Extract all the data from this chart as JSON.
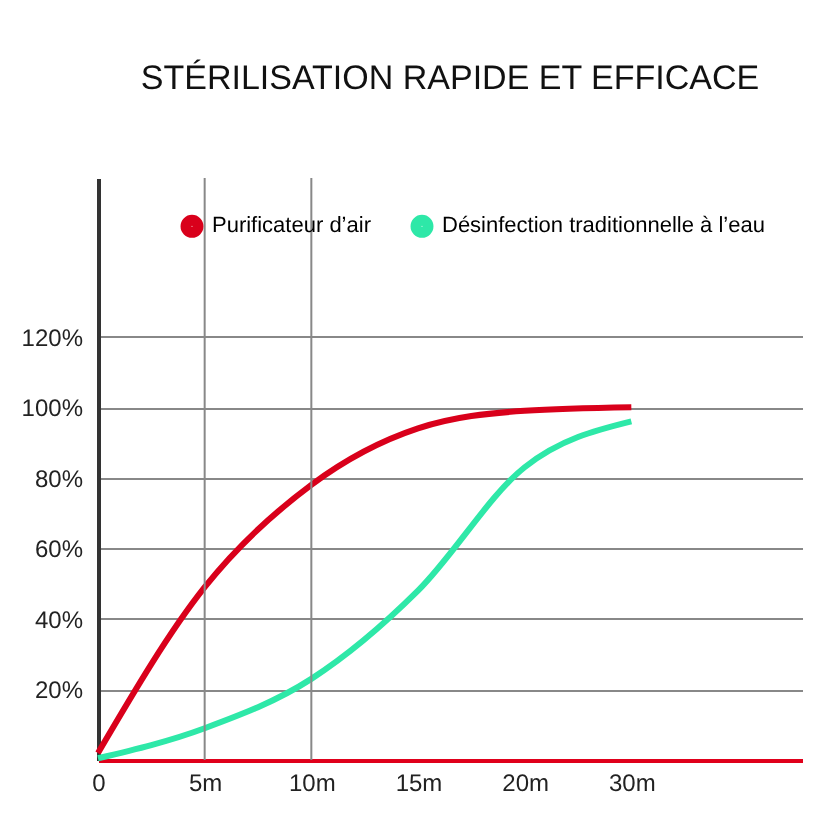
{
  "chart_data": {
    "type": "line",
    "title": "STÉRILISATION RAPIDE ET EFFICACE",
    "categories": [
      "0",
      "5m",
      "10m",
      "15m",
      "20m",
      "30m"
    ],
    "series": [
      {
        "name": "Purificateur d’air",
        "color": "#d9001b",
        "values": [
          2,
          49,
          78,
          94,
          99,
          100
        ]
      },
      {
        "name": "Désinfection traditionnelle à l’eau",
        "color": "#2ee8a8",
        "values": [
          0.5,
          9,
          23,
          48,
          83,
          96
        ]
      }
    ],
    "ylim": [
      0,
      165
    ],
    "yticks": [
      {
        "value": 20,
        "label": "20%"
      },
      {
        "value": 40,
        "label": "40%"
      },
      {
        "value": 60,
        "label": "60%"
      },
      {
        "value": 80,
        "label": "80%"
      },
      {
        "value": 100,
        "label": "100%"
      },
      {
        "value": 120,
        "label": "120%"
      }
    ],
    "ref_lines": [
      {
        "axis": "x",
        "value": "5m"
      },
      {
        "axis": "x",
        "value": "10m"
      }
    ],
    "grid": "y",
    "legend": "top right",
    "line_style": "solid",
    "marker": "none"
  }
}
